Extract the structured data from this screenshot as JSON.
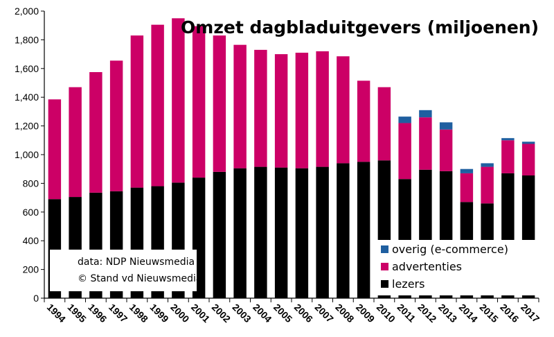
{
  "chart_data": {
    "type": "bar",
    "stacked": true,
    "title": "Omzet dagbladuitgevers (miljoenen)",
    "xlabel": "",
    "ylabel": "",
    "ylim": [
      0,
      2000
    ],
    "yticks": [
      "0",
      "200",
      "400",
      "600",
      "800",
      "1,000",
      "1,200",
      "1,400",
      "1,600",
      "1,800",
      "2,000"
    ],
    "categories": [
      "1994",
      "1995",
      "1996",
      "1997",
      "1998",
      "1999",
      "2000",
      "2001",
      "2002",
      "2003",
      "2004",
      "2005",
      "2006",
      "2007",
      "2008",
      "2009",
      "2010",
      "2011",
      "2012",
      "2013",
      "2014",
      "2015",
      "2016",
      "2017"
    ],
    "series": [
      {
        "name": "lezers",
        "color": "#000000",
        "values": [
          690,
          705,
          735,
          745,
          770,
          780,
          805,
          840,
          880,
          905,
          915,
          910,
          905,
          915,
          940,
          950,
          960,
          830,
          895,
          885,
          670,
          660,
          870,
          855
        ]
      },
      {
        "name": "advertenties",
        "color": "#cc0066",
        "values": [
          695,
          765,
          840,
          910,
          1060,
          1125,
          1145,
          1055,
          950,
          860,
          815,
          790,
          805,
          805,
          745,
          565,
          510,
          390,
          365,
          290,
          200,
          255,
          230,
          220
        ]
      },
      {
        "name": "overig (e-commerce)",
        "color": "#1f5fa0",
        "values": [
          0,
          0,
          0,
          0,
          0,
          0,
          0,
          0,
          0,
          0,
          0,
          0,
          0,
          0,
          0,
          0,
          0,
          45,
          50,
          50,
          30,
          25,
          15,
          15
        ]
      }
    ],
    "grid": false,
    "legend_position": "bottom-right",
    "note": [
      "data: NDP Nieuwsmedia",
      "© Stand vd Nieuwsmedia"
    ]
  }
}
